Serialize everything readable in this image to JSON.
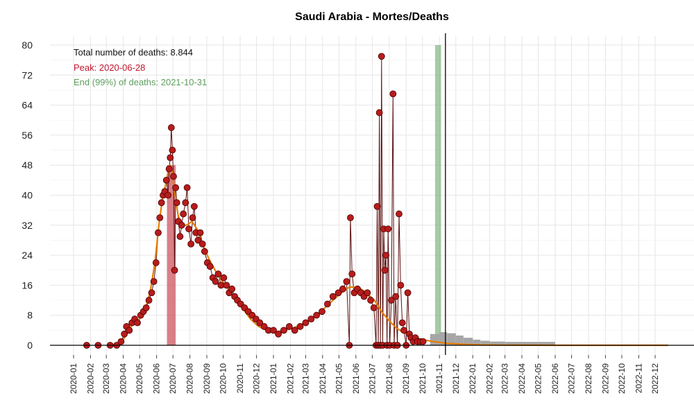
{
  "chart_data": {
    "type": "line",
    "title": "Saudi Arabia - Mortes/Deaths",
    "xlabel": "",
    "ylabel": "",
    "ylim": [
      0,
      80
    ],
    "y_ticks": [
      0,
      8,
      16,
      24,
      32,
      40,
      48,
      56,
      64,
      72,
      80
    ],
    "x_ticks": [
      "2020-01",
      "2020-02",
      "2020-03",
      "2020-04",
      "2020-05",
      "2020-06",
      "2020-07",
      "2020-08",
      "2020-09",
      "2020-10",
      "2020-11",
      "2020-12",
      "2021-01",
      "2021-02",
      "2021-03",
      "2021-04",
      "2021-05",
      "2021-06",
      "2021-07",
      "2021-08",
      "2021-09",
      "2021-10",
      "2021-11",
      "2021-12",
      "2022-01",
      "2022-02",
      "2022-03",
      "2022-04",
      "2022-05",
      "2022-06",
      "2022-07",
      "2022-08",
      "2022-09",
      "2022-10",
      "2022-11",
      "2022-12"
    ],
    "grid": true,
    "annotations": {
      "total": "Total number of deaths: 8.844",
      "peak": "Peak: 2020-06-28",
      "end": "End (99%) of deaths: 2021-10-31"
    },
    "peak_band": {
      "from": "2020-06-20",
      "to": "2020-07-06"
    },
    "end_band": {
      "from": "2021-10-24",
      "to": "2021-11-04"
    },
    "today_line": "2021-11-12",
    "series": [
      {
        "kind": "daily_points",
        "values": [
          [
            "2020-01-25",
            0
          ],
          [
            "2020-02-15",
            0
          ],
          [
            "2020-03-08",
            0
          ],
          [
            "2020-03-20",
            0
          ],
          [
            "2020-03-28",
            1
          ],
          [
            "2020-04-03",
            3
          ],
          [
            "2020-04-07",
            5
          ],
          [
            "2020-04-12",
            4
          ],
          [
            "2020-04-17",
            6
          ],
          [
            "2020-04-22",
            7
          ],
          [
            "2020-04-27",
            6
          ],
          [
            "2020-05-03",
            8
          ],
          [
            "2020-05-08",
            9
          ],
          [
            "2020-05-13",
            10
          ],
          [
            "2020-05-18",
            12
          ],
          [
            "2020-05-23",
            14
          ],
          [
            "2020-05-27",
            17
          ],
          [
            "2020-05-31",
            22
          ],
          [
            "2020-06-04",
            30
          ],
          [
            "2020-06-07",
            34
          ],
          [
            "2020-06-10",
            38
          ],
          [
            "2020-06-13",
            40
          ],
          [
            "2020-06-16",
            41
          ],
          [
            "2020-06-19",
            44
          ],
          [
            "2020-06-22",
            40
          ],
          [
            "2020-06-24",
            47
          ],
          [
            "2020-06-26",
            50
          ],
          [
            "2020-06-28",
            58
          ],
          [
            "2020-06-30",
            52
          ],
          [
            "2020-07-02",
            45
          ],
          [
            "2020-07-04",
            20
          ],
          [
            "2020-07-06",
            42
          ],
          [
            "2020-07-08",
            38
          ],
          [
            "2020-07-11",
            33
          ],
          [
            "2020-07-14",
            29
          ],
          [
            "2020-07-17",
            32
          ],
          [
            "2020-07-20",
            35
          ],
          [
            "2020-07-24",
            38
          ],
          [
            "2020-07-27",
            42
          ],
          [
            "2020-07-30",
            31
          ],
          [
            "2020-08-03",
            27
          ],
          [
            "2020-08-06",
            34
          ],
          [
            "2020-08-09",
            37
          ],
          [
            "2020-08-12",
            30
          ],
          [
            "2020-08-16",
            28
          ],
          [
            "2020-08-20",
            30
          ],
          [
            "2020-08-24",
            27
          ],
          [
            "2020-08-28",
            25
          ],
          [
            "2020-09-02",
            22
          ],
          [
            "2020-09-07",
            21
          ],
          [
            "2020-09-12",
            18
          ],
          [
            "2020-09-17",
            17
          ],
          [
            "2020-09-22",
            19
          ],
          [
            "2020-09-27",
            16
          ],
          [
            "2020-10-02",
            18
          ],
          [
            "2020-10-07",
            16
          ],
          [
            "2020-10-12",
            14
          ],
          [
            "2020-10-17",
            15
          ],
          [
            "2020-10-22",
            13
          ],
          [
            "2020-10-27",
            12
          ],
          [
            "2020-11-02",
            11
          ],
          [
            "2020-11-09",
            10
          ],
          [
            "2020-11-16",
            9
          ],
          [
            "2020-11-23",
            8
          ],
          [
            "2020-11-30",
            7
          ],
          [
            "2020-12-07",
            6
          ],
          [
            "2020-12-15",
            5
          ],
          [
            "2020-12-23",
            4
          ],
          [
            "2021-01-01",
            4
          ],
          [
            "2021-01-10",
            3
          ],
          [
            "2021-01-20",
            4
          ],
          [
            "2021-01-30",
            5
          ],
          [
            "2021-02-09",
            4
          ],
          [
            "2021-02-19",
            5
          ],
          [
            "2021-03-01",
            6
          ],
          [
            "2021-03-11",
            7
          ],
          [
            "2021-03-21",
            8
          ],
          [
            "2021-03-31",
            9
          ],
          [
            "2021-04-10",
            11
          ],
          [
            "2021-04-20",
            13
          ],
          [
            "2021-04-30",
            14
          ],
          [
            "2021-05-08",
            15
          ],
          [
            "2021-05-15",
            17
          ],
          [
            "2021-05-20",
            0
          ],
          [
            "2021-05-22",
            34
          ],
          [
            "2021-05-25",
            19
          ],
          [
            "2021-05-29",
            14
          ],
          [
            "2021-06-04",
            15
          ],
          [
            "2021-06-10",
            14
          ],
          [
            "2021-06-16",
            13
          ],
          [
            "2021-06-22",
            14
          ],
          [
            "2021-06-28",
            12
          ],
          [
            "2021-07-04",
            10
          ],
          [
            "2021-07-08",
            0
          ],
          [
            "2021-07-10",
            37
          ],
          [
            "2021-07-12",
            0
          ],
          [
            "2021-07-14",
            62
          ],
          [
            "2021-07-16",
            0
          ],
          [
            "2021-07-18",
            77
          ],
          [
            "2021-07-20",
            0
          ],
          [
            "2021-07-22",
            31
          ],
          [
            "2021-07-24",
            20
          ],
          [
            "2021-07-26",
            24
          ],
          [
            "2021-07-28",
            0
          ],
          [
            "2021-07-30",
            31
          ],
          [
            "2021-08-02",
            0
          ],
          [
            "2021-08-05",
            12
          ],
          [
            "2021-08-08",
            67
          ],
          [
            "2021-08-10",
            0
          ],
          [
            "2021-08-13",
            13
          ],
          [
            "2021-08-16",
            0
          ],
          [
            "2021-08-19",
            35
          ],
          [
            "2021-08-22",
            16
          ],
          [
            "2021-08-25",
            6
          ],
          [
            "2021-08-28",
            4
          ],
          [
            "2021-09-01",
            0
          ],
          [
            "2021-09-04",
            14
          ],
          [
            "2021-09-07",
            3
          ],
          [
            "2021-09-10",
            2
          ],
          [
            "2021-09-14",
            1
          ],
          [
            "2021-09-18",
            2
          ],
          [
            "2021-09-22",
            1
          ],
          [
            "2021-09-27",
            1
          ],
          [
            "2021-10-02",
            1
          ]
        ]
      },
      {
        "kind": "smoothed_fit",
        "values": [
          [
            "2020-03-20",
            0
          ],
          [
            "2020-03-27",
            0.3
          ],
          [
            "2020-04-03",
            2
          ],
          [
            "2020-04-15",
            5
          ],
          [
            "2020-05-01",
            7
          ],
          [
            "2020-05-10",
            9
          ],
          [
            "2020-05-20",
            14
          ],
          [
            "2020-05-29",
            22
          ],
          [
            "2020-06-06",
            33
          ],
          [
            "2020-06-13",
            40
          ],
          [
            "2020-06-18",
            43
          ],
          [
            "2020-06-23",
            47
          ],
          [
            "2020-06-26",
            48
          ],
          [
            "2020-06-30",
            46
          ],
          [
            "2020-07-04",
            41
          ],
          [
            "2020-07-10",
            35
          ],
          [
            "2020-07-16",
            32
          ],
          [
            "2020-07-26",
            32
          ],
          [
            "2020-08-05",
            33
          ],
          [
            "2020-08-14",
            31
          ],
          [
            "2020-08-24",
            27
          ],
          [
            "2020-09-05",
            23
          ],
          [
            "2020-09-20",
            19
          ],
          [
            "2020-10-05",
            16
          ],
          [
            "2020-10-20",
            13
          ],
          [
            "2020-11-05",
            10
          ],
          [
            "2020-11-20",
            7
          ],
          [
            "2020-12-05",
            5
          ],
          [
            "2020-12-20",
            4
          ],
          [
            "2021-01-05",
            3.5
          ],
          [
            "2021-01-20",
            4
          ],
          [
            "2021-02-05",
            4.5
          ],
          [
            "2021-02-20",
            5.5
          ],
          [
            "2021-03-05",
            6.5
          ],
          [
            "2021-03-20",
            8
          ],
          [
            "2021-04-05",
            10
          ],
          [
            "2021-04-20",
            12
          ],
          [
            "2021-05-05",
            14
          ],
          [
            "2021-05-20",
            15.5
          ],
          [
            "2021-06-05",
            15.5
          ],
          [
            "2021-06-20",
            14
          ],
          [
            "2021-07-05",
            12
          ],
          [
            "2021-07-18",
            9
          ],
          [
            "2021-08-01",
            6.5
          ],
          [
            "2021-08-15",
            4.5
          ],
          [
            "2021-09-01",
            3
          ],
          [
            "2021-09-15",
            2.2
          ],
          [
            "2021-10-01",
            1.5
          ],
          [
            "2021-10-20",
            1
          ],
          [
            "2021-11-10",
            0.6
          ],
          [
            "2021-12-10",
            0.3
          ],
          [
            "2022-01-15",
            0.1
          ],
          [
            "2022-03-01",
            0.03
          ],
          [
            "2022-06-01",
            0
          ],
          [
            "2022-12-25",
            0
          ]
        ]
      },
      {
        "kind": "forecast_bars",
        "values": [
          [
            "2021-10-15",
            3
          ],
          [
            "2021-11-01",
            3.5
          ],
          [
            "2021-11-15",
            3.2
          ],
          [
            "2021-12-01",
            2.6
          ],
          [
            "2021-12-15",
            2
          ],
          [
            "2022-01-01",
            1.5
          ],
          [
            "2022-01-15",
            1.2
          ],
          [
            "2022-02-01",
            1
          ],
          [
            "2022-03-01",
            0.9
          ],
          [
            "2022-04-01",
            0.9
          ],
          [
            "2022-05-01",
            0.9
          ],
          [
            "2022-05-15",
            0.9
          ],
          [
            "2022-06-01",
            0
          ]
        ]
      }
    ],
    "colors": {
      "points": "#b71c1c",
      "point_stroke": "#4a0000",
      "stems": "#5a0e0e",
      "fit": "#e67e00",
      "peak_band": "#c94a55",
      "end_band": "#6aa86a",
      "forecast": "#a6a6a6",
      "grid": "#e6e6e6",
      "peak_text": "#c0132b",
      "end_text": "#5d9e5d"
    }
  }
}
